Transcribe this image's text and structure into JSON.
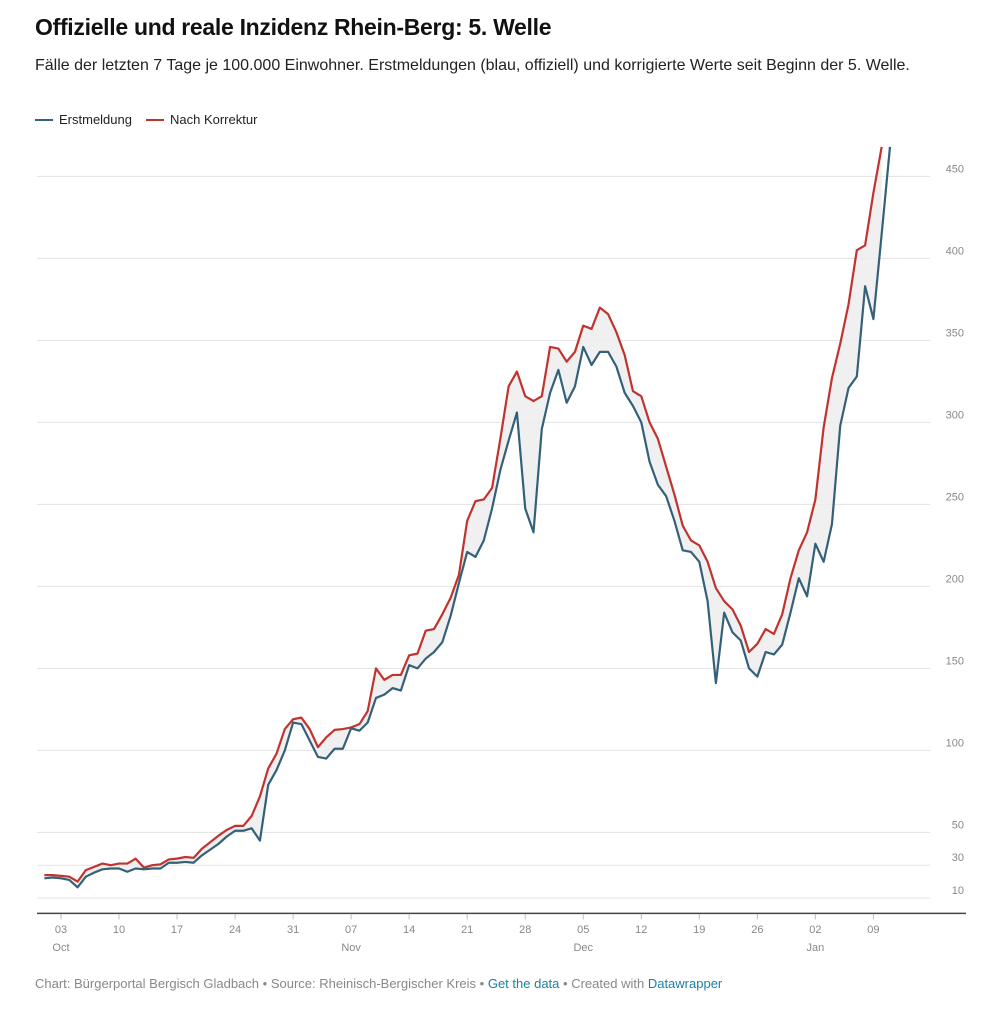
{
  "chart_data": {
    "type": "line",
    "title": "Offizielle und reale Inzidenz Rhein-Berg: 5. Welle",
    "subtitle": "Fälle der letzten 7 Tage je 100.000 Einwohner. Erstmeldungen (blau, offiziell) und korrigierte Werte seit Beginn der 5. Welle.",
    "categories": [
      null,
      null,
      "03",
      null,
      null,
      null,
      null,
      null,
      null,
      "10",
      null,
      null,
      null,
      null,
      null,
      null,
      "17",
      null,
      null,
      null,
      null,
      null,
      null,
      "24",
      null,
      null,
      null,
      null,
      null,
      null,
      "31",
      null,
      null,
      null,
      null,
      null,
      null,
      "07",
      null,
      null,
      null,
      null,
      null,
      null,
      "14",
      null,
      null,
      null,
      null,
      null,
      null,
      "21",
      null,
      null,
      null,
      null,
      null,
      null,
      "28",
      null,
      null,
      null,
      null,
      null,
      null,
      "05",
      null,
      null,
      null,
      null,
      null,
      null,
      "12",
      null,
      null,
      null,
      null,
      null,
      null,
      "19",
      null,
      null,
      null,
      null,
      null,
      null,
      "26",
      null,
      null,
      null,
      null,
      null,
      null,
      "02",
      null,
      null,
      null,
      null,
      null,
      null,
      "09",
      null,
      null
    ],
    "months": [
      "Oct",
      "Nov",
      "Dec",
      "Jan"
    ],
    "series": [
      {
        "name": "Erstmeldung",
        "color": "#34607a",
        "values": [
          22,
          22.5,
          22,
          21,
          16.5,
          23,
          25.5,
          27.5,
          28,
          28,
          26,
          28,
          27.5,
          28,
          28,
          31.5,
          31.5,
          32,
          31.5,
          36,
          39.5,
          43,
          47.5,
          51,
          51,
          52.5,
          45,
          79,
          88,
          100,
          117,
          116,
          106,
          96,
          95,
          101,
          101,
          113.5,
          112,
          117,
          132,
          134,
          138,
          136.5,
          152,
          150,
          156,
          160,
          166,
          182,
          202,
          221,
          218,
          228,
          247.5,
          271,
          289,
          306,
          247.5,
          233,
          296,
          318,
          332,
          312,
          322,
          346,
          335,
          343,
          343,
          334,
          318,
          310,
          300,
          276,
          262,
          255,
          240,
          222,
          221,
          215,
          191,
          141,
          184,
          172,
          167,
          150,
          145,
          160,
          158.5,
          164.5,
          184,
          205,
          194,
          226,
          215,
          238,
          298,
          321,
          328,
          383,
          363,
          415,
          468
        ]
      },
      {
        "name": "Nach Korrektur",
        "color": "#c0332f",
        "values": [
          24,
          24,
          23.5,
          23,
          20,
          27,
          29,
          31,
          30,
          31,
          31,
          34,
          28.5,
          30,
          30.5,
          33.5,
          34,
          35,
          34.5,
          40,
          44,
          48,
          51.5,
          54,
          54,
          60,
          72,
          89,
          98,
          113,
          119,
          120,
          113,
          102,
          108,
          112.5,
          113,
          114,
          116,
          124,
          150,
          143,
          146,
          146,
          158,
          159,
          173,
          174,
          183,
          193,
          207,
          240,
          252,
          253,
          260,
          290,
          322,
          331,
          316,
          313,
          316,
          346,
          345,
          337,
          343,
          359,
          357,
          370,
          366,
          355,
          341,
          319,
          316,
          300,
          290,
          273,
          256,
          237,
          228,
          225,
          215,
          199,
          191,
          186,
          176,
          160,
          165,
          174,
          171,
          183,
          205,
          222,
          233,
          253,
          297,
          327,
          348,
          372,
          405,
          408,
          440,
          468,
          null
        ]
      }
    ],
    "ylim": [
      0,
      470
    ],
    "yticks": [
      10,
      30,
      50,
      100,
      150,
      200,
      250,
      300,
      350,
      400,
      450
    ],
    "grid": true,
    "legend": "top-left",
    "footer": {
      "credit": "Chart: Bürgerportal Bergisch Gladbach",
      "separator": "•",
      "source": "Source: Rheinisch-Bergischer Kreis",
      "get_data": "Get the data",
      "created": "Created with",
      "tool": "Datawrapper"
    }
  }
}
